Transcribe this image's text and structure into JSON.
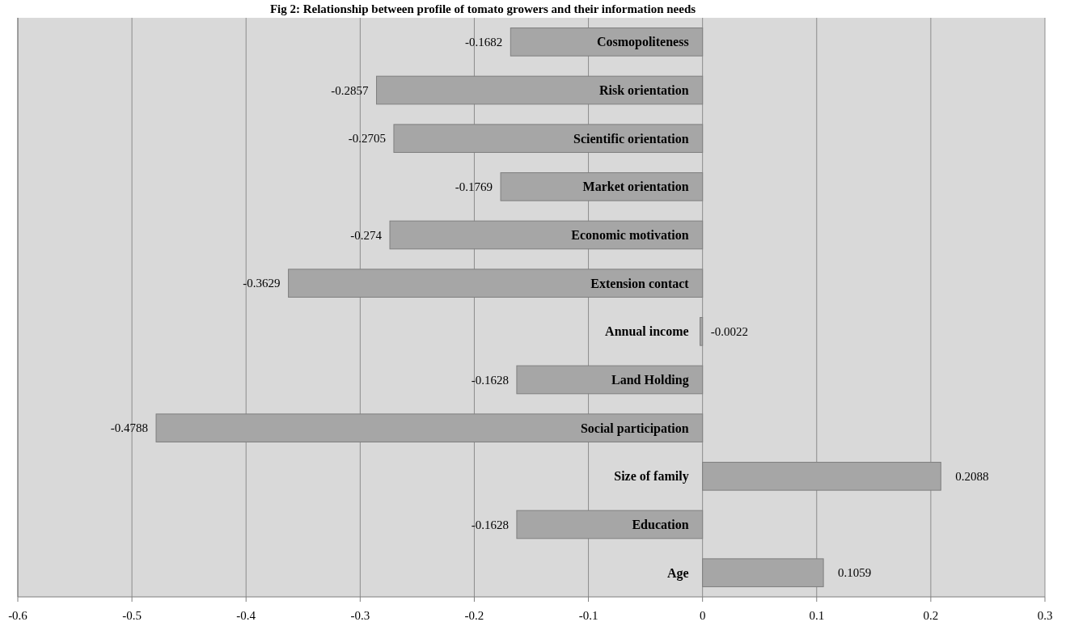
{
  "chart_data": {
    "type": "bar",
    "orientation": "horizontal",
    "title": "Fig 2: Relationship between profile of tomato growers and their information needs",
    "categories": [
      "Cosmopoliteness",
      "Risk orientation",
      "Scientific orientation",
      "Market orientation",
      "Economic motivation",
      "Extension contact",
      "Annual income",
      "Land Holding",
      "Social participation",
      "Size of family",
      "Education",
      "Age"
    ],
    "values": [
      -0.1682,
      -0.2857,
      -0.2705,
      -0.1769,
      -0.274,
      -0.3629,
      -0.0022,
      -0.1628,
      -0.4788,
      0.2088,
      -0.1628,
      0.1059
    ],
    "color": "#a6a6a6",
    "data_labels": true,
    "xlim": [
      -0.6,
      0.3
    ],
    "xticks": [
      -0.6,
      -0.5,
      -0.4,
      -0.3,
      -0.2,
      -0.1,
      0,
      0.1,
      0.2,
      0.3
    ],
    "grid": "x"
  }
}
